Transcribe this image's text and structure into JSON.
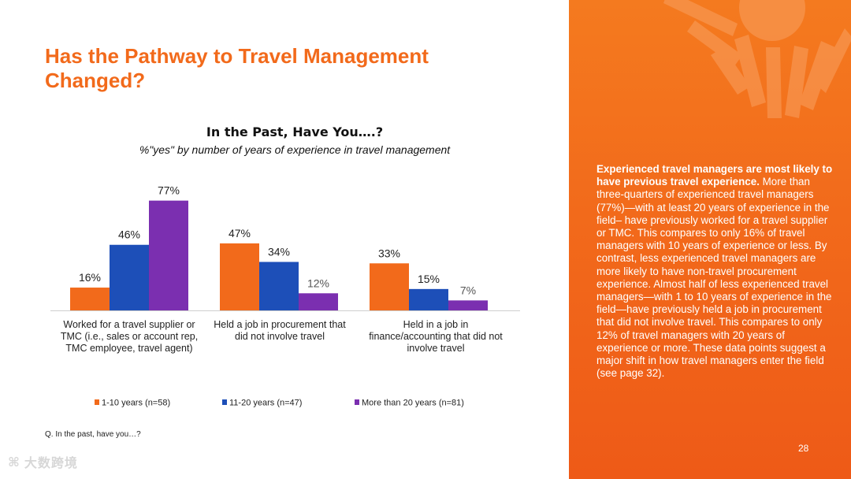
{
  "slide": {
    "title": "Has the Pathway to Travel Management Changed?",
    "footnote": "Q. In the past, have you…?",
    "page_number": "28",
    "watermark": "大数跨境",
    "watermark_icon": "logo-icon"
  },
  "side_panel": {
    "bold_lead": "Experienced travel managers are most likely to have previous travel experience.",
    "body": " More than three-quarters of experienced travel managers (77%)—with at least 20 years of experience in the field– have previously worked for a travel supplier or TMC. This compares to only 16% of travel managers with 10 years of experience or less. By contrast, less experienced travel managers are more likely to have non-travel procurement experience. Almost half of less experienced travel managers—with 1 to 10 years of experience in the field—have previously held a job in procurement that did not involve travel. This compares to only 12% of travel managers with 20 years of experience or more. These data points suggest a major shift in how travel managers enter the field (see page 32).",
    "background_color": "#f26a1b"
  },
  "chart_data": {
    "type": "bar",
    "title": "In the Past, Have You….?",
    "subtitle": "%\"yes\" by number of years of experience in travel management",
    "categories": [
      "Worked for a travel supplier or TMC (i.e., sales or account rep, TMC employee, travel agent)",
      "Held a job in procurement that did not involve travel",
      "Held in a job in finance/accounting that did not involve travel"
    ],
    "category_lines": [
      [
        "Worked for a travel supplier or",
        "TMC (i.e., sales or account rep,",
        "TMC employee, travel agent)"
      ],
      [
        "Held a job in procurement that",
        "did not involve travel"
      ],
      [
        "Held in a job in",
        "finance/accounting that did not",
        "involve travel"
      ]
    ],
    "series": [
      {
        "name": "1-10 years (n=58)",
        "color": "#f26a1b",
        "values": [
          16,
          47,
          33
        ],
        "labels": [
          "16%",
          "47%",
          "33%"
        ]
      },
      {
        "name": "11-20 years (n=47)",
        "color": "#1d4fb8",
        "values": [
          46,
          34,
          15
        ],
        "labels": [
          "46%",
          "34%",
          "15%"
        ]
      },
      {
        "name": "More than 20 years (n=81)",
        "color": "#7b2fb0",
        "values": [
          77,
          12,
          7
        ],
        "labels": [
          "77%",
          "12%",
          "7%"
        ]
      }
    ],
    "ylim": [
      0,
      100
    ],
    "grid": false,
    "legend_position": "bottom",
    "xlabel": "",
    "ylabel": ""
  }
}
